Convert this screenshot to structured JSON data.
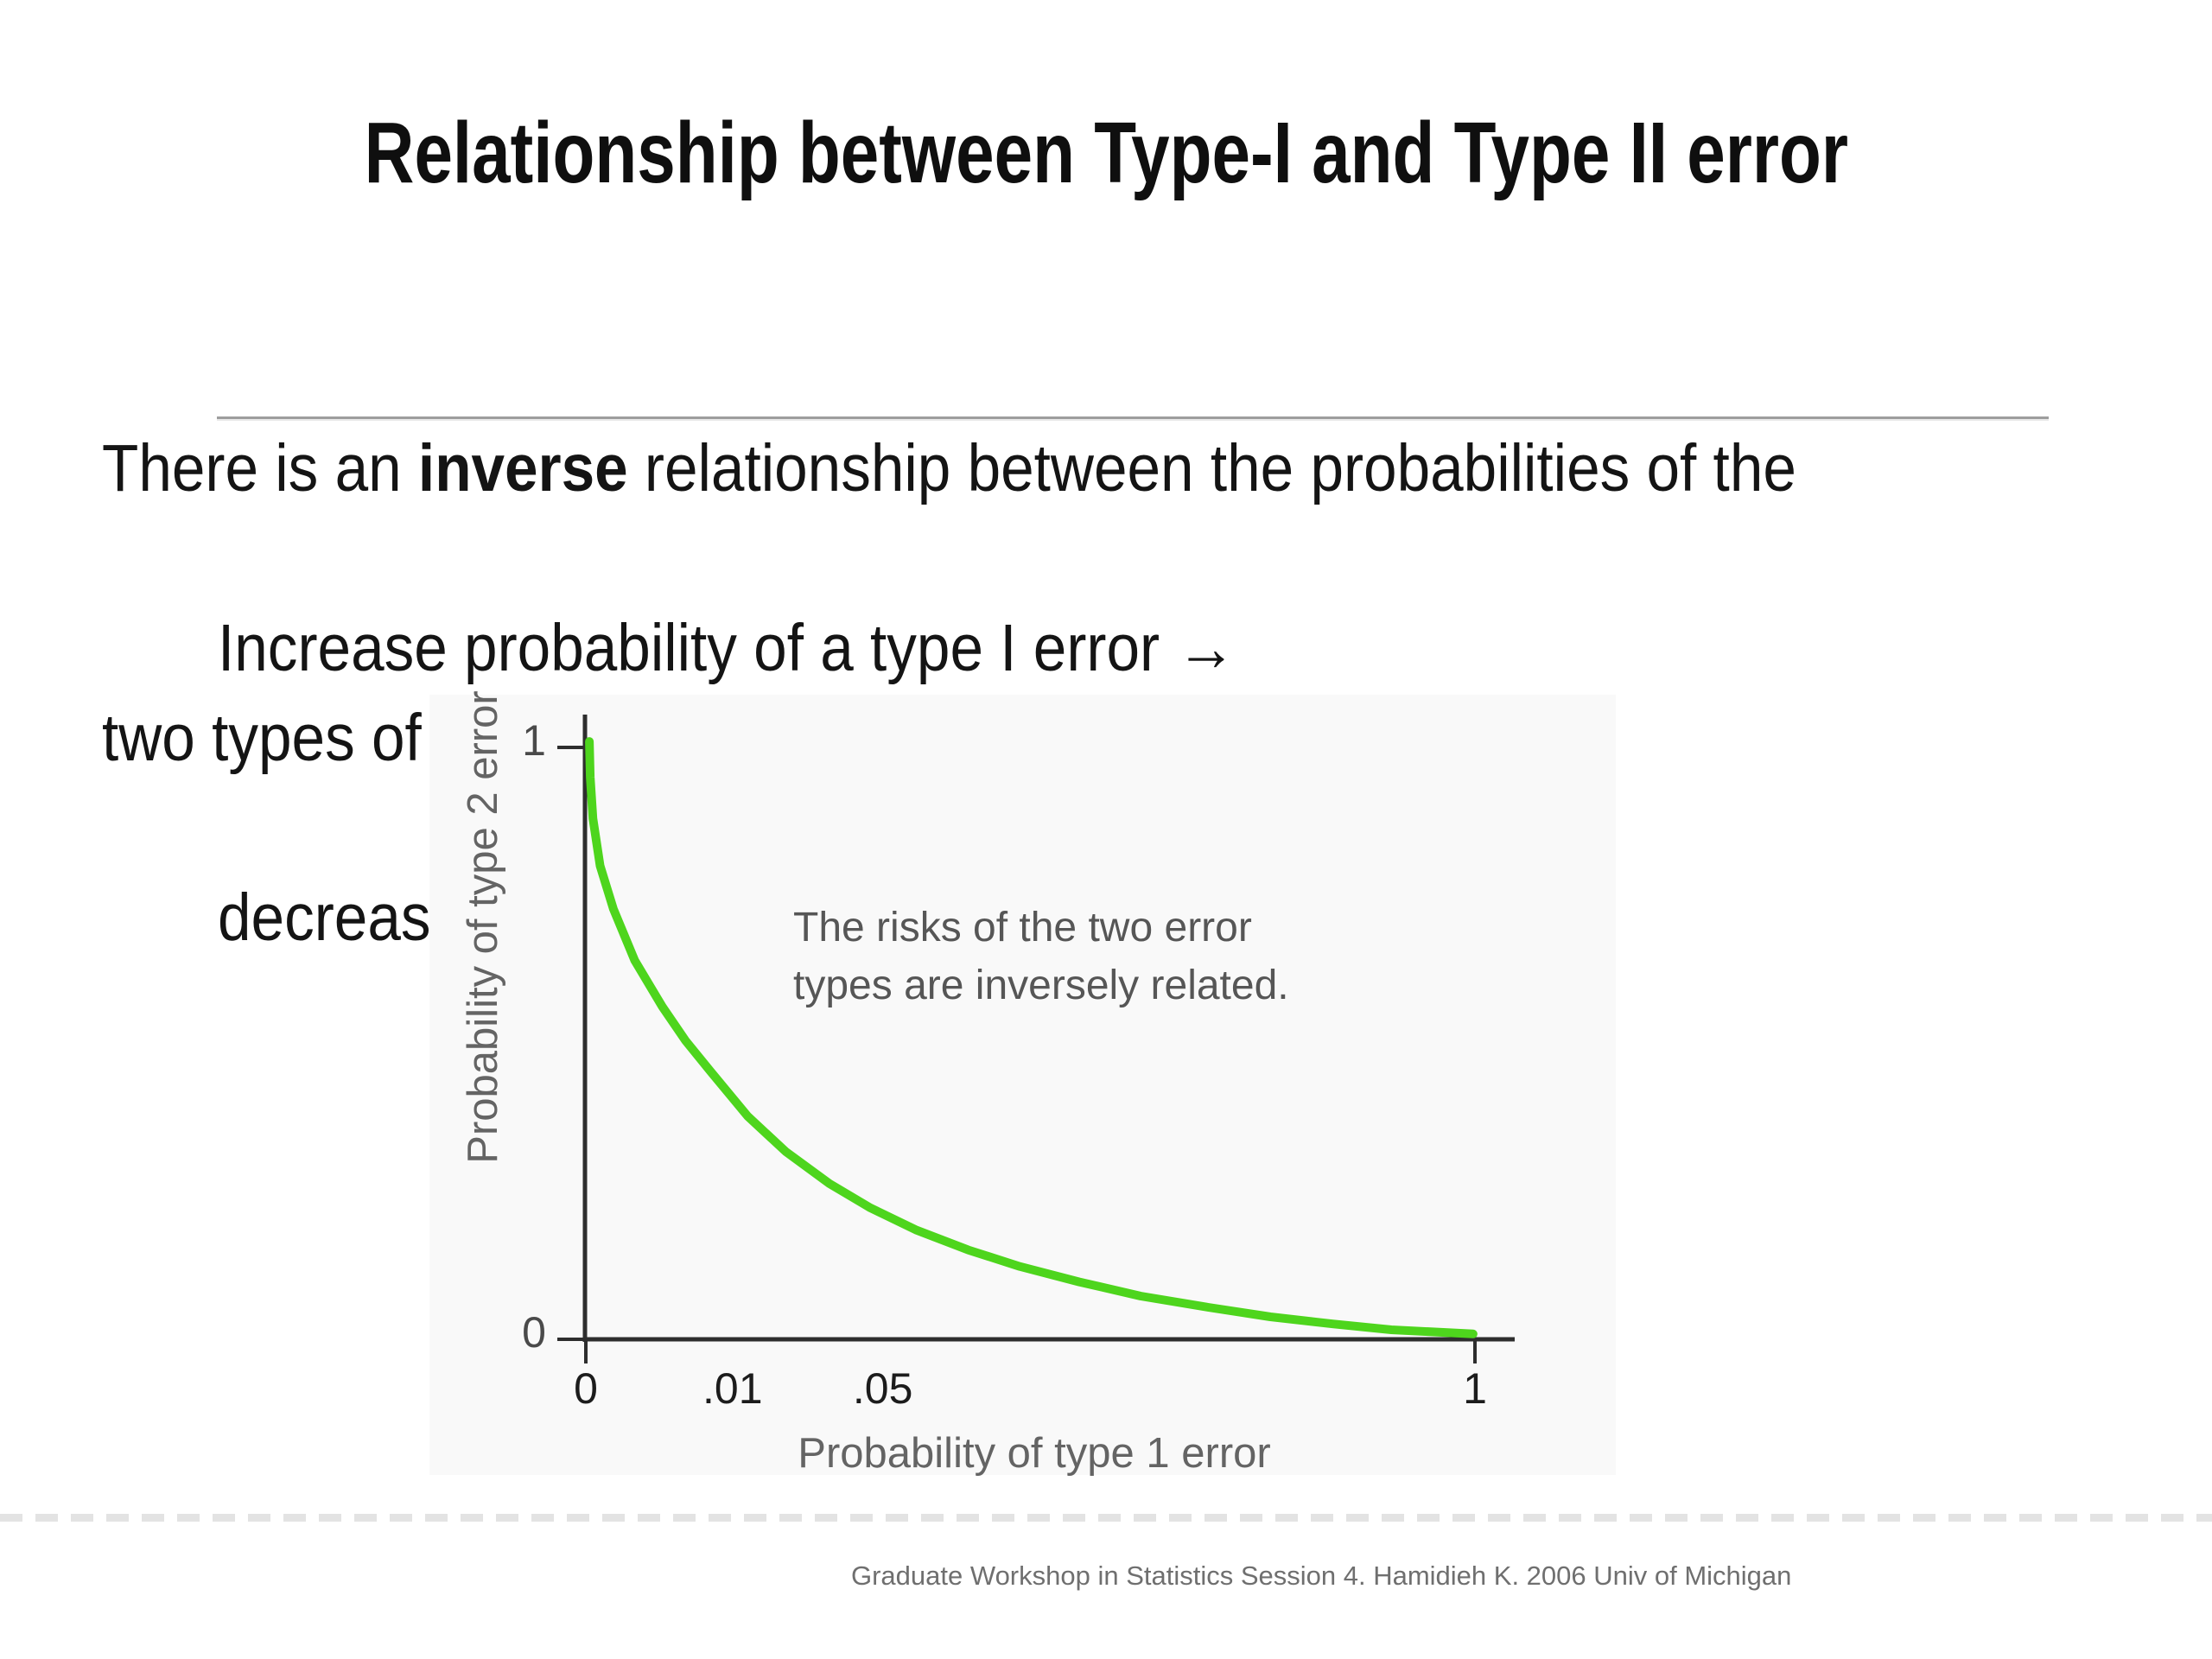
{
  "slide": {
    "title": "Relationship between Type-I and Type II error",
    "body": {
      "line1_pre": "There is an ",
      "line1_bold": "inverse",
      "line1_post": " relationship between the probabilities of the",
      "line2": "two types of errors."
    },
    "points": {
      "line1": "Increase probability of a type I error →",
      "line2": "decrease in probability of a type II error (vice-versa)"
    }
  },
  "chart_data": {
    "type": "line",
    "title": "",
    "xlabel": "Probability of type 1 error",
    "ylabel": "Probability of type 2 error",
    "annotation": {
      "line1": "The risks of the two error",
      "line2": "types are inversely related."
    },
    "xlim": [
      0,
      1
    ],
    "ylim": [
      0,
      1
    ],
    "grid": false,
    "x_ticks": [
      {
        "label": "0",
        "pos": 0.0,
        "tick": true
      },
      {
        "label": ".01",
        "pos": 0.165,
        "tick": false
      },
      {
        "label": ".05",
        "pos": 0.334,
        "tick": false
      },
      {
        "label": "1",
        "pos": 1.0,
        "tick": true
      }
    ],
    "y_ticks": [
      {
        "label": "0",
        "pos": 0.0,
        "tick": true
      },
      {
        "label": "1",
        "pos": 1.0,
        "tick": true
      }
    ],
    "curve_color": "#4ed51d",
    "series": [
      {
        "name": "probability-of-type-2-error-vs-type-1-error",
        "points_axis_fraction": [
          [
            0.004,
            1.01
          ],
          [
            0.005,
            0.95
          ],
          [
            0.008,
            0.88
          ],
          [
            0.016,
            0.8
          ],
          [
            0.031,
            0.727
          ],
          [
            0.055,
            0.64
          ],
          [
            0.086,
            0.562
          ],
          [
            0.112,
            0.505
          ],
          [
            0.14,
            0.453
          ],
          [
            0.182,
            0.377
          ],
          [
            0.225,
            0.317
          ],
          [
            0.274,
            0.263
          ],
          [
            0.32,
            0.222
          ],
          [
            0.371,
            0.185
          ],
          [
            0.43,
            0.151
          ],
          [
            0.488,
            0.123
          ],
          [
            0.555,
            0.097
          ],
          [
            0.624,
            0.073
          ],
          [
            0.7,
            0.054
          ],
          [
            0.77,
            0.038
          ],
          [
            0.84,
            0.026
          ],
          [
            0.906,
            0.016
          ],
          [
            0.998,
            0.009
          ]
        ]
      }
    ]
  },
  "footer": {
    "text": "Graduate Workshop in Statistics Session 4. Hamidieh K. 2006 Univ of Michigan"
  },
  "colors": {
    "curve_green": "#4ed51d",
    "stripe_blue": "#96b5d3",
    "band_orange": "#dc8143",
    "axis_dark": "#2e2e2e"
  }
}
